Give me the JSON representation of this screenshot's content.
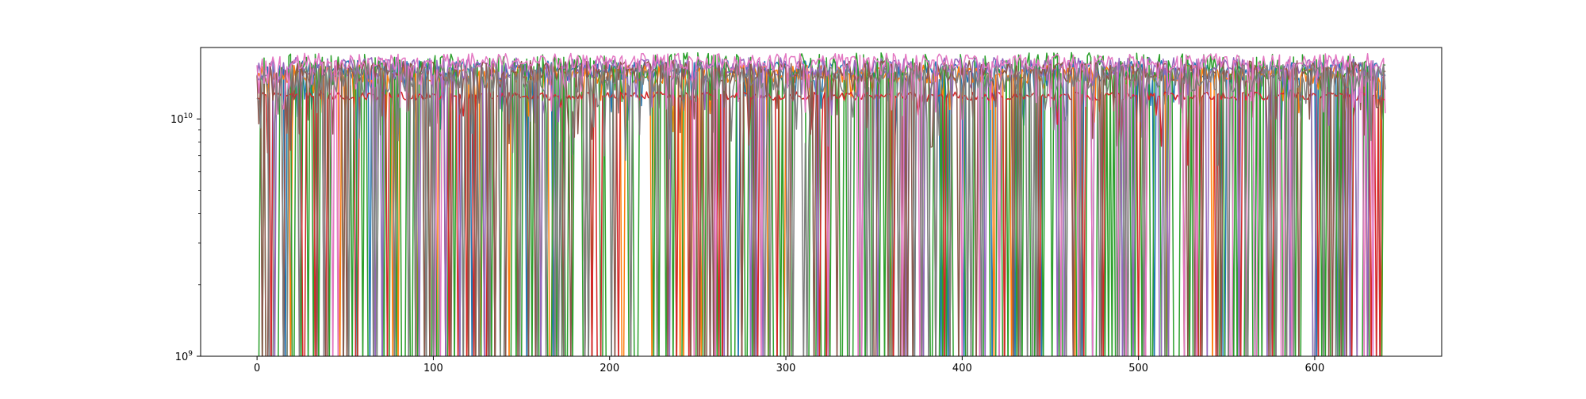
{
  "chart_data": {
    "type": "line",
    "title": "",
    "xlabel": "",
    "ylabel": "",
    "y_scale": "log",
    "xlim": [
      -32,
      672
    ],
    "ylim": [
      1000000000,
      20000000000
    ],
    "x_ticks": [
      {
        "value": 0,
        "label": "0"
      },
      {
        "value": 100,
        "label": "100"
      },
      {
        "value": 200,
        "label": "200"
      },
      {
        "value": 300,
        "label": "300"
      },
      {
        "value": 400,
        "label": "400"
      },
      {
        "value": 500,
        "label": "500"
      },
      {
        "value": 600,
        "label": "600"
      }
    ],
    "y_ticks": [
      {
        "value": 1000000000,
        "base": "10",
        "exp": "9"
      },
      {
        "value": 10000000000,
        "base": "10",
        "exp": "10"
      }
    ],
    "grid": false,
    "legend": "none",
    "x_range": [
      0,
      640
    ],
    "series": [
      {
        "color": "#1f77b4",
        "level": 16000000000,
        "jitter": 0.1,
        "dip_prob": 0.12,
        "dip_depth": 0.45,
        "deep_prob": 0.06,
        "seed": 11
      },
      {
        "color": "#ff7f0e",
        "level": 15500000000,
        "jitter": 0.09,
        "dip_prob": 0.1,
        "dip_depth": 0.4,
        "deep_prob": 0.05,
        "seed": 23
      },
      {
        "color": "#2ca02c",
        "level": 17000000000,
        "jitter": 0.12,
        "dip_prob": 0.1,
        "dip_depth": 0.55,
        "deep_prob": 0.45,
        "seed": 37
      },
      {
        "color": "#d62728",
        "level": 12500000000,
        "jitter": 0.04,
        "dip_prob": 0.06,
        "dip_depth": 0.5,
        "deep_prob": 0.1,
        "seed": 41
      },
      {
        "color": "#9467bd",
        "level": 16500000000,
        "jitter": 0.1,
        "dip_prob": 0.14,
        "dip_depth": 0.45,
        "deep_prob": 0.08,
        "seed": 53
      },
      {
        "color": "#8c564b",
        "level": 16000000000,
        "jitter": 0.1,
        "dip_prob": 0.16,
        "dip_depth": 0.5,
        "deep_prob": 0.1,
        "seed": 67
      },
      {
        "color": "#e377c2",
        "level": 17500000000,
        "jitter": 0.08,
        "dip_prob": 0.12,
        "dip_depth": 0.4,
        "deep_prob": 0.06,
        "seed": 79
      },
      {
        "color": "#7f7f7f",
        "level": 15000000000,
        "jitter": 0.14,
        "dip_prob": 0.18,
        "dip_depth": 0.55,
        "deep_prob": 0.14,
        "seed": 97
      }
    ]
  }
}
